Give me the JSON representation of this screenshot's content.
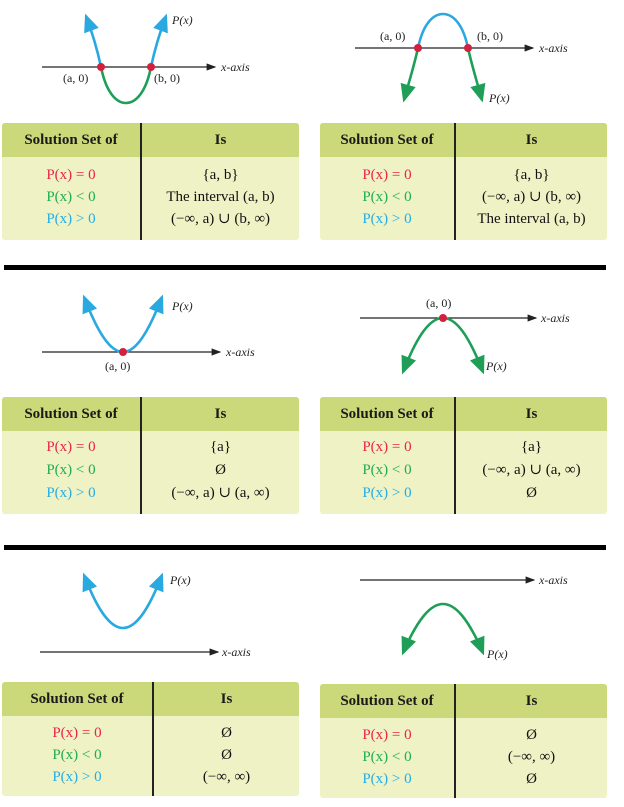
{
  "rows": [
    {
      "left": {
        "labels": {
          "p": "P(x)",
          "axis": "x-axis",
          "a": "(a, 0)",
          "b": "(b, 0)"
        },
        "header": {
          "col1": "Solution Set of",
          "col2": "Is"
        },
        "conditions": [
          "P(x) = 0",
          "P(x) < 0",
          "P(x) > 0"
        ],
        "values": [
          "{a, b}",
          "The interval (a, b)",
          "(−∞, a) ∪ (b, ∞)"
        ]
      },
      "right": {
        "labels": {
          "p": "P(x)",
          "axis": "x-axis",
          "a": "(a, 0)",
          "b": "(b, 0)"
        },
        "header": {
          "col1": "Solution Set of",
          "col2": "Is"
        },
        "conditions": [
          "P(x) = 0",
          "P(x) < 0",
          "P(x) > 0"
        ],
        "values": [
          "{a, b}",
          "(−∞, a) ∪ (b, ∞)",
          "The interval (a, b)"
        ]
      }
    },
    {
      "left": {
        "labels": {
          "p": "P(x)",
          "axis": "x-axis",
          "a": "(a, 0)"
        },
        "header": {
          "col1": "Solution Set of",
          "col2": "Is"
        },
        "conditions": [
          "P(x) = 0",
          "P(x) < 0",
          "P(x) > 0"
        ],
        "values": [
          "{a}",
          "Ø",
          "(−∞, a) ∪ (a, ∞)"
        ]
      },
      "right": {
        "labels": {
          "p": "P(x)",
          "axis": "x-axis",
          "a": "(a, 0)"
        },
        "header": {
          "col1": "Solution Set of",
          "col2": "Is"
        },
        "conditions": [
          "P(x) = 0",
          "P(x) < 0",
          "P(x) > 0"
        ],
        "values": [
          "{a}",
          "(−∞, a) ∪ (a, ∞)",
          "Ø"
        ]
      }
    },
    {
      "left": {
        "labels": {
          "p": "P(x)",
          "axis": "x-axis"
        },
        "header": {
          "col1": "Solution Set of",
          "col2": "Is"
        },
        "conditions": [
          "P(x) = 0",
          "P(x) < 0",
          "P(x) > 0"
        ],
        "values": [
          "Ø",
          "Ø",
          "(−∞, ∞)"
        ]
      },
      "right": {
        "labels": {
          "p": "P(x)",
          "axis": "x-axis"
        },
        "header": {
          "col1": "Solution Set of",
          "col2": "Is"
        },
        "conditions": [
          "P(x) = 0",
          "P(x) < 0",
          "P(x) > 0"
        ],
        "values": [
          "Ø",
          "(−∞, ∞)",
          "Ø"
        ]
      }
    }
  ],
  "colors": {
    "eq": "#e8254a",
    "lt": "#1fae4f",
    "gt": "#24aee6",
    "header": "#cbd97a",
    "body": "#eef2c4"
  }
}
